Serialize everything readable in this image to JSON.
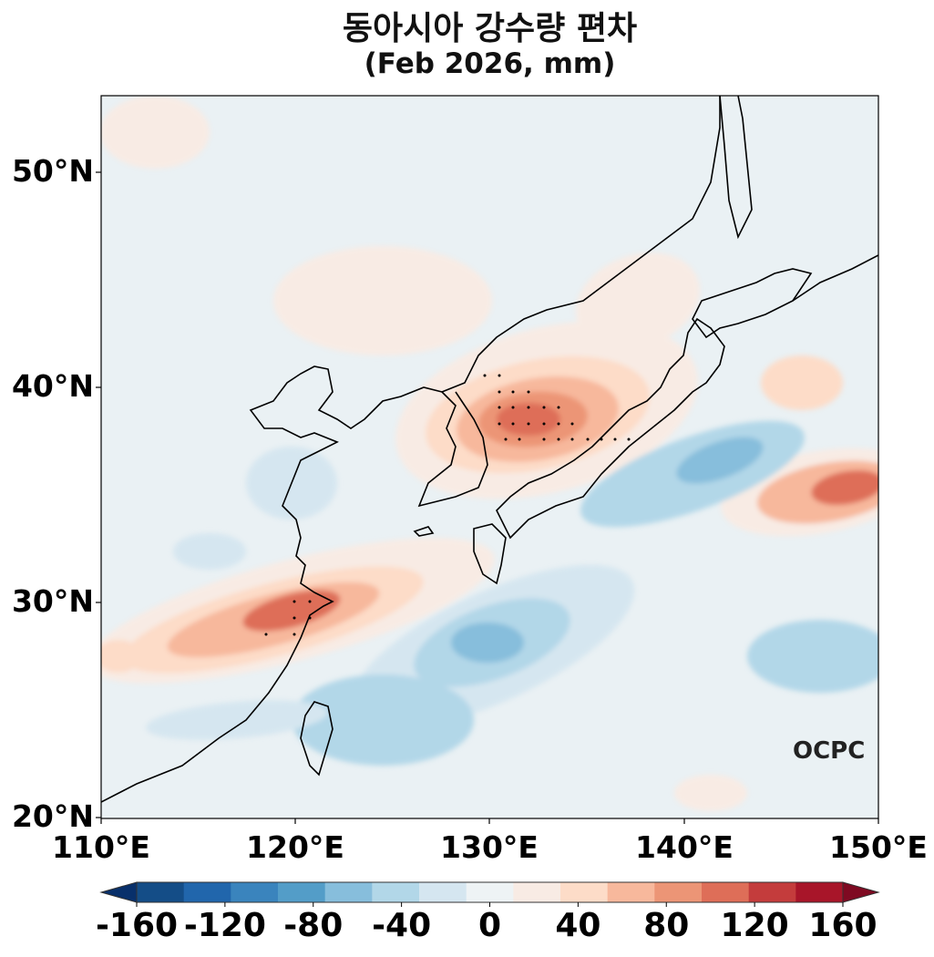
{
  "title": {
    "line1": "동아시아 강수량 편차",
    "line2": "(Feb 2026, mm)"
  },
  "map": {
    "extent_lon": [
      110,
      150
    ],
    "extent_lat": [
      20,
      53.5
    ],
    "lat_labels": [
      "50°N",
      "40°N",
      "30°N",
      "20°N"
    ],
    "lon_labels": [
      "110°E",
      "120°E",
      "130°E",
      "140°E",
      "150°E"
    ],
    "logo": "OCPC",
    "significance_marker": "stippling dots"
  },
  "colorbar": {
    "ticks": [
      "-160",
      "-120",
      "-80",
      "-40",
      "0",
      "40",
      "80",
      "120",
      "160"
    ],
    "levels": [
      -160,
      -140,
      -120,
      -100,
      -80,
      -60,
      -40,
      -20,
      0,
      20,
      40,
      60,
      80,
      100,
      120,
      140,
      160
    ],
    "colors": [
      "#08306b",
      "#144d87",
      "#2166ac",
      "#3a84bd",
      "#539dc8",
      "#87bedc",
      "#b2d7e8",
      "#d5e6f0",
      "#eef3f5",
      "#f8ebe4",
      "#fddcc8",
      "#f7b89c",
      "#ec9576",
      "#de6e58",
      "#c43c3c",
      "#a81529",
      "#7f0a22"
    ],
    "extend": "both"
  }
}
